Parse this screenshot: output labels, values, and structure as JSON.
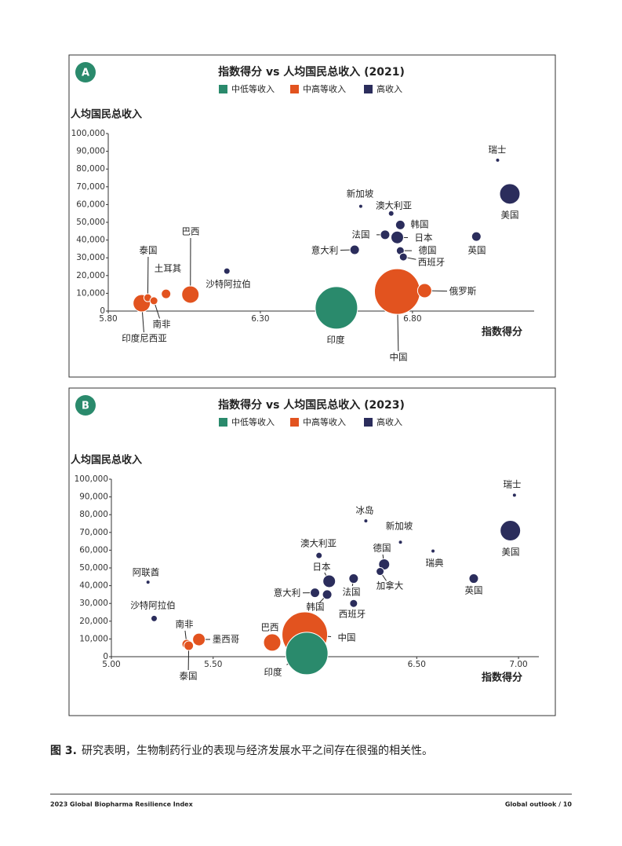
{
  "chart_data": [
    {
      "type": "bubble",
      "panel": "A",
      "title": "指数得分 vs 人均国民总收入 (2021)",
      "y_label": "人均国民总收入",
      "x_label": "指数得分",
      "xlim": [
        5.8,
        7.2
      ],
      "xticks": [
        {
          "value": 5.8,
          "label": "5.80"
        },
        {
          "value": 6.3,
          "label": "6.30"
        },
        {
          "value": 6.8,
          "label": "6.80"
        }
      ],
      "ylim": [
        0,
        100000
      ],
      "yticks": [
        0,
        {
          "value": 10000,
          "label": "10,000"
        },
        {
          "value": 20000,
          "label": "20,000"
        },
        {
          "value": 30000,
          "label": "30,000"
        },
        {
          "value": 40000,
          "label": "40,000"
        },
        {
          "value": 50000,
          "label": "50,000"
        },
        {
          "value": 60000,
          "label": "60,000"
        },
        {
          "value": 70000,
          "label": "70,000"
        },
        {
          "value": 80000,
          "label": "80,000"
        },
        {
          "value": 90000,
          "label": "90,000"
        },
        {
          "value": 100000,
          "label": "100,000"
        }
      ],
      "series": [
        {
          "name": "中低等收入",
          "color": "#2a8a6c",
          "labels": [
            "印度"
          ],
          "x": [
            6.55
          ],
          "values": [
            1800
          ],
          "sizes": [
            27
          ]
        },
        {
          "name": "中高等收入",
          "color": "#e2531f",
          "labels": [
            "中国",
            "俄罗斯",
            "巴西",
            "土耳其",
            "泰国",
            "南非",
            "印度尼西亚"
          ],
          "x": [
            6.75,
            6.84,
            6.07,
            5.99,
            5.93,
            5.95,
            5.91
          ],
          "values": [
            11000,
            11500,
            9300,
            9700,
            7500,
            5800,
            4400
          ],
          "sizes": [
            29,
            9,
            11,
            6,
            5,
            5,
            11
          ]
        },
        {
          "name": "高收入",
          "color": "#2b2d5c",
          "labels": [
            "瑞士",
            "美国",
            "新加坡",
            "澳大利亚",
            "韩国",
            "日本",
            "法国",
            "英国",
            "德国",
            "西班牙",
            "意大利",
            "沙特阿拉伯"
          ],
          "x": [
            7.08,
            7.12,
            6.63,
            6.73,
            6.76,
            6.75,
            6.71,
            7.01,
            6.76,
            6.77,
            6.61,
            6.19
          ],
          "values": [
            85000,
            66000,
            59000,
            55000,
            48500,
            41500,
            43000,
            42000,
            34000,
            30500,
            34500,
            22500
          ],
          "sizes": [
            2,
            13,
            2,
            3,
            6,
            8,
            6,
            6,
            5,
            5,
            6,
            4
          ]
        }
      ]
    },
    {
      "type": "bubble",
      "panel": "B",
      "title": "指数得分 vs 人均国民总收入 (2023)",
      "y_label": "人均国民总收入",
      "x_label": "指数得分",
      "xlim": [
        5.0,
        7.1
      ],
      "xticks": [
        {
          "value": 5.0,
          "label": "5.00"
        },
        {
          "value": 5.5,
          "label": "5.50"
        },
        {
          "value": 6.0,
          "label": "6.00"
        },
        {
          "value": 6.5,
          "label": "6.50"
        },
        {
          "value": 7.0,
          "label": "7.00"
        }
      ],
      "ylim": [
        0,
        100000
      ],
      "yticks": [
        0,
        {
          "value": 10000,
          "label": "10,000"
        },
        {
          "value": 20000,
          "label": "20,000"
        },
        {
          "value": 30000,
          "label": "30,000"
        },
        {
          "value": 40000,
          "label": "40,000"
        },
        {
          "value": 50000,
          "label": "50,000"
        },
        {
          "value": 60000,
          "label": "60,000"
        },
        {
          "value": 70000,
          "label": "70,000"
        },
        {
          "value": 80000,
          "label": "80,000"
        },
        {
          "value": 90000,
          "label": "90,000"
        },
        {
          "value": 100000,
          "label": "100,000"
        }
      ],
      "series": [
        {
          "name": "中低等收入",
          "color": "#2a8a6c",
          "labels": [
            "印度"
          ],
          "x": [
            5.96
          ],
          "values": [
            1800
          ],
          "sizes": [
            27
          ]
        },
        {
          "name": "中高等收入",
          "color": "#e2531f",
          "labels": [
            "中国",
            "巴西",
            "墨西哥",
            "南非",
            "泰国"
          ],
          "x": [
            5.95,
            5.79,
            5.43,
            5.37,
            5.38
          ],
          "values": [
            12400,
            8000,
            9700,
            7100,
            6200
          ],
          "sizes": [
            29,
            11,
            8,
            6,
            6
          ]
        },
        {
          "name": "高收入",
          "color": "#2b2d5c",
          "labels": [
            "瑞士",
            "美国",
            "冰岛",
            "新加坡",
            "瑞典",
            "澳大利亚",
            "德国",
            "加拿大",
            "英国",
            "日本",
            "法国",
            "意大利",
            "韩国",
            "西班牙",
            "阿联酋",
            "沙特阿拉伯"
          ],
          "x": [
            6.98,
            6.96,
            6.25,
            6.42,
            6.58,
            6.02,
            6.34,
            6.32,
            6.78,
            6.07,
            6.19,
            6.0,
            6.06,
            6.19,
            5.18,
            5.21
          ],
          "values": [
            91000,
            71000,
            76500,
            64500,
            59500,
            57000,
            52000,
            48000,
            44000,
            42500,
            44000,
            36000,
            35000,
            30000,
            42000,
            21500
          ],
          "sizes": [
            2,
            13,
            2,
            2,
            2,
            4,
            7,
            5,
            6,
            8,
            6,
            6,
            6,
            5,
            2,
            4
          ]
        }
      ]
    }
  ],
  "caption": {
    "label": "图 3.",
    "text": "研究表明，生物制药行业的表现与经济发展水平之间存在很强的相关性。"
  },
  "footer": {
    "left": "2023 Global Biopharma Resilience Index",
    "right": "Global outlook / 10"
  }
}
